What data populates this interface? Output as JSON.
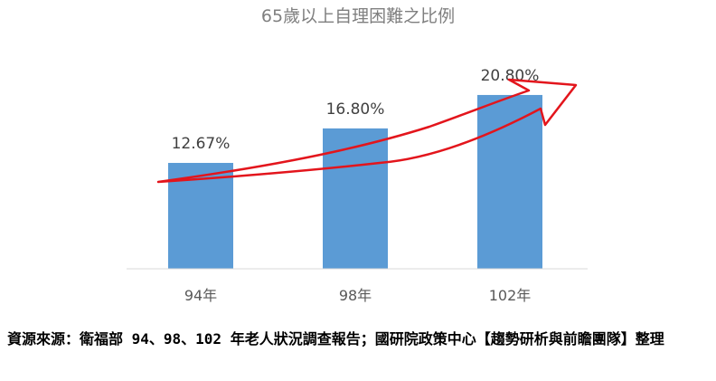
{
  "chart_data": {
    "type": "bar",
    "title": "65歲以上自理困難之比例",
    "categories": [
      "94年",
      "98年",
      "102年"
    ],
    "values": [
      12.67,
      16.8,
      20.8
    ],
    "value_labels": [
      "12.67%",
      "16.80%",
      "20.80%"
    ],
    "ylim": [
      0,
      30
    ],
    "grid": false,
    "bar_color": "#5b9bd5",
    "annotation": {
      "type": "trend-arrow",
      "color": "#e3151c"
    }
  },
  "caption": "資源來源：衛福部 94、98、102 年老人狀況調查報告；國研院政策中心【趨勢研析與前瞻團隊】整理"
}
